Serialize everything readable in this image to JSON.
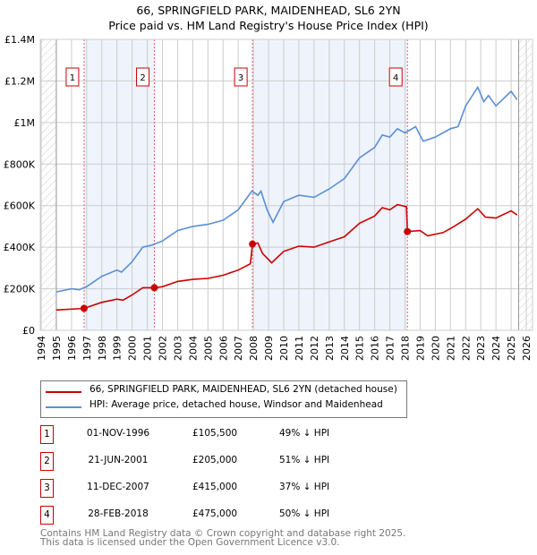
{
  "title": "66, SPRINGFIELD PARK, MAIDENHEAD, SL6 2YN",
  "subtitle": "Price paid vs. HM Land Registry's House Price Index (HPI)",
  "chart_data": {
    "type": "line",
    "title": "66, SPRINGFIELD PARK, MAIDENHEAD, SL6 2YN",
    "subtitle": "Price paid vs. HM Land Registry's House Price Index (HPI)",
    "xlim": [
      1994,
      2026
    ],
    "ylim": [
      0,
      1400000
    ],
    "yticks": [
      {
        "v": 0,
        "label": "£0"
      },
      {
        "v": 200000,
        "label": "£200K"
      },
      {
        "v": 400000,
        "label": "£400K"
      },
      {
        "v": 600000,
        "label": "£600K"
      },
      {
        "v": 800000,
        "label": "£800K"
      },
      {
        "v": 1000000,
        "label": "£1M"
      },
      {
        "v": 1200000,
        "label": "£1.2M"
      },
      {
        "v": 1400000,
        "label": "£1.4M"
      }
    ],
    "xticks": [
      "1994",
      "1995",
      "1996",
      "1997",
      "1998",
      "1999",
      "2000",
      "2001",
      "2002",
      "2003",
      "2004",
      "2005",
      "2006",
      "2007",
      "2008",
      "2009",
      "2010",
      "2011",
      "2012",
      "2013",
      "2014",
      "2015",
      "2016",
      "2017",
      "2018",
      "2019",
      "2020",
      "2021",
      "2022",
      "2023",
      "2024",
      "2025",
      "2026"
    ],
    "grid": true,
    "series": [
      {
        "name": "66, SPRINGFIELD PARK, MAIDENHEAD, SL6 2YN (detached house)",
        "color": "#cc0000",
        "x": [
          1995,
          1996.83,
          1998,
          1999,
          1999.4,
          2000,
          2000.7,
          2001.47,
          2002,
          2003,
          2004,
          2005,
          2006,
          2007,
          2007.8,
          2007.94,
          2008.3,
          2008.6,
          2009.2,
          2010,
          2011,
          2012,
          2013,
          2014,
          2015,
          2016,
          2016.5,
          2017,
          2017.5,
          2018.1,
          2018.16,
          2019,
          2019.5,
          2020.5,
          2021,
          2022,
          2022.8,
          2023.3,
          2024,
          2025,
          2025.4
        ],
        "y": [
          98000,
          105500,
          135000,
          150000,
          145000,
          170000,
          205000,
          205000,
          210000,
          235000,
          245000,
          250000,
          265000,
          290000,
          320000,
          415000,
          420000,
          370000,
          325000,
          380000,
          405000,
          400000,
          425000,
          450000,
          515000,
          550000,
          590000,
          580000,
          605000,
          595000,
          475000,
          480000,
          455000,
          470000,
          490000,
          535000,
          585000,
          545000,
          540000,
          575000,
          555000
        ]
      },
      {
        "name": "HPI: Average price, detached house, Windsor and Maidenhead",
        "color": "#5b8fd6",
        "x": [
          1995,
          1996,
          1996.5,
          1997,
          1998,
          1999,
          1999.3,
          2000,
          2000.7,
          2001.3,
          2002,
          2003,
          2004,
          2005,
          2006,
          2007,
          2007.9,
          2008.3,
          2008.5,
          2008.9,
          2009.3,
          2010,
          2011,
          2012,
          2013,
          2014,
          2015,
          2016,
          2016.5,
          2017,
          2017.5,
          2018,
          2018.7,
          2019.2,
          2020,
          2021,
          2021.5,
          2022,
          2022.8,
          2023.2,
          2023.5,
          2024,
          2025,
          2025.4
        ],
        "y": [
          185000,
          200000,
          195000,
          210000,
          260000,
          290000,
          280000,
          330000,
          400000,
          410000,
          430000,
          480000,
          500000,
          510000,
          530000,
          580000,
          670000,
          650000,
          670000,
          580000,
          520000,
          620000,
          650000,
          640000,
          680000,
          730000,
          830000,
          880000,
          940000,
          930000,
          970000,
          950000,
          980000,
          910000,
          930000,
          970000,
          980000,
          1080000,
          1170000,
          1100000,
          1130000,
          1080000,
          1150000,
          1110000
        ]
      }
    ],
    "sales": [
      {
        "n": "1",
        "x": 1996.83,
        "y": 105500,
        "date": "01-NOV-1996",
        "price": "£105,500",
        "hpi": "49% ↓ HPI"
      },
      {
        "n": "2",
        "x": 2001.47,
        "y": 205000,
        "date": "21-JUN-2001",
        "price": "£205,000",
        "hpi": "51% ↓ HPI"
      },
      {
        "n": "3",
        "x": 2007.94,
        "y": 415000,
        "date": "11-DEC-2007",
        "price": "£415,000",
        "hpi": "37% ↓ HPI"
      },
      {
        "n": "4",
        "x": 2018.16,
        "y": 475000,
        "date": "28-FEB-2018",
        "price": "£475,000",
        "hpi": "50% ↓ HPI"
      }
    ],
    "legend_placement": "below"
  },
  "legend": {
    "property": "66, SPRINGFIELD PARK, MAIDENHEAD, SL6 2YN (detached house)",
    "hpi": "HPI: Average price, detached house, Windsor and Maidenhead"
  },
  "footer": {
    "line1": "Contains HM Land Registry data © Crown copyright and database right 2025.",
    "line2": "This data is licensed under the Open Government Licence v3.0."
  }
}
